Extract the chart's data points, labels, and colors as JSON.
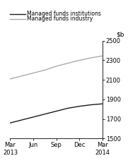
{
  "title": "",
  "ylim": [
    1500,
    2500
  ],
  "yticks": [
    1500,
    1700,
    1900,
    2100,
    2300,
    2500
  ],
  "x_labels": [
    "Mar\n2013",
    "Jun",
    "Sep",
    "Dec",
    "Mar\n2014"
  ],
  "x_positions": [
    0,
    1,
    2,
    3,
    4
  ],
  "institutions_x": [
    0,
    0.5,
    1,
    1.5,
    2,
    2.5,
    3,
    3.5,
    4
  ],
  "institutions_y": [
    1660,
    1690,
    1720,
    1750,
    1780,
    1810,
    1830,
    1845,
    1855
  ],
  "industry_x": [
    0,
    0.5,
    1,
    1.5,
    2,
    2.5,
    3,
    3.5,
    4
  ],
  "industry_y": [
    2110,
    2140,
    2170,
    2200,
    2240,
    2270,
    2300,
    2325,
    2345
  ],
  "line_color_institutions": "#1a1a1a",
  "line_color_industry": "#aaaaaa",
  "legend_label_institutions": "Managed funds institutions",
  "legend_label_industry": "Managed funds industry",
  "background_color": "#ffffff",
  "figsize": [
    1.81,
    2.31
  ],
  "dpi": 100
}
